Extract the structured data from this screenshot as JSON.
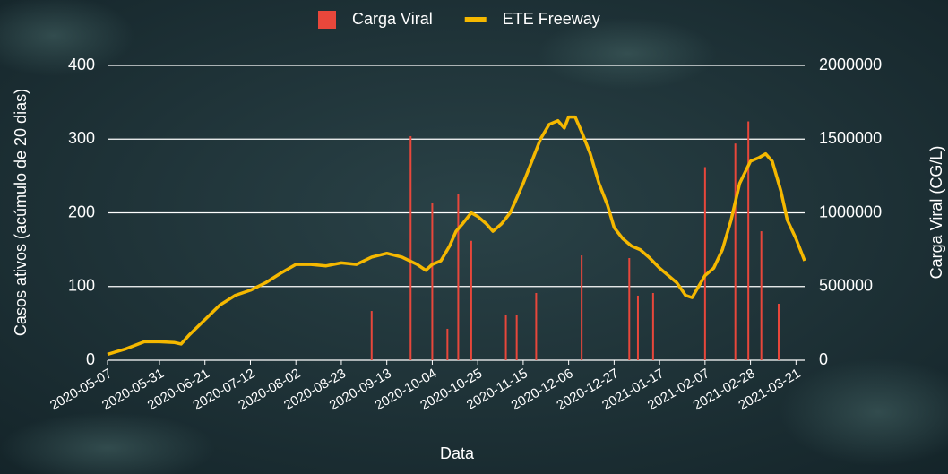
{
  "chart_data": {
    "type": "combo",
    "xlabel": "Data",
    "ylabel": "Casos ativos (acúmulo de 20 dias)",
    "y2label": "Carga Viral (CG/L)",
    "xlim": [
      "2020-05-07",
      "2021-03-25"
    ],
    "xticks": [
      "2020-05-07",
      "2020-05-31",
      "2020-06-21",
      "2020-07-12",
      "2020-08-02",
      "2020-08-23",
      "2020-09-13",
      "2020-10-04",
      "2020-10-25",
      "2020-11-15",
      "2020-12-06",
      "2020-12-27",
      "2021-01-17",
      "2021-02-07",
      "2021-02-28",
      "2021-03-21"
    ],
    "ylim": [
      0,
      400
    ],
    "yticks": [
      0,
      100,
      200,
      300,
      400
    ],
    "y2lim": [
      0,
      2000000
    ],
    "y2ticks": [
      0,
      500000,
      1000000,
      1500000,
      2000000
    ],
    "grid": true,
    "legend": "top",
    "series": [
      {
        "name": "Carga Viral",
        "type": "bar",
        "axis": "y2",
        "color": "#e8473b",
        "x": [
          "2020-09-06",
          "2020-09-24",
          "2020-10-04",
          "2020-10-11",
          "2020-10-16",
          "2020-10-22",
          "2020-11-07",
          "2020-11-12",
          "2020-11-21",
          "2020-12-12",
          "2021-01-03",
          "2021-01-07",
          "2021-01-14",
          "2021-02-07",
          "2021-02-21",
          "2021-02-27",
          "2021-03-05",
          "2021-03-13"
        ],
        "values": [
          334000,
          1520000,
          1070000,
          213000,
          1130000,
          810000,
          304000,
          304000,
          456000,
          711000,
          693000,
          438000,
          456000,
          1310000,
          1470000,
          1620000,
          875000,
          383000
        ]
      },
      {
        "name": "ETE Freeway",
        "type": "line",
        "axis": "y",
        "color": "#f5b800",
        "x": [
          "2020-05-07",
          "2020-05-15",
          "2020-05-24",
          "2020-05-31",
          "2020-06-07",
          "2020-06-10",
          "2020-06-14",
          "2020-06-21",
          "2020-06-28",
          "2020-07-05",
          "2020-07-12",
          "2020-07-19",
          "2020-07-26",
          "2020-08-02",
          "2020-08-09",
          "2020-08-16",
          "2020-08-23",
          "2020-08-30",
          "2020-09-06",
          "2020-09-13",
          "2020-09-20",
          "2020-09-27",
          "2020-10-01",
          "2020-10-04",
          "2020-10-08",
          "2020-10-12",
          "2020-10-15",
          "2020-10-18",
          "2020-10-22",
          "2020-10-25",
          "2020-10-29",
          "2020-11-01",
          "2020-11-05",
          "2020-11-09",
          "2020-11-12",
          "2020-11-15",
          "2020-11-19",
          "2020-11-23",
          "2020-11-27",
          "2020-12-01",
          "2020-12-04",
          "2020-12-06",
          "2020-12-09",
          "2020-12-12",
          "2020-12-16",
          "2020-12-20",
          "2020-12-24",
          "2020-12-27",
          "2020-12-31",
          "2021-01-04",
          "2021-01-08",
          "2021-01-12",
          "2021-01-17",
          "2021-01-21",
          "2021-01-25",
          "2021-01-29",
          "2021-02-01",
          "2021-02-04",
          "2021-02-07",
          "2021-02-11",
          "2021-02-15",
          "2021-02-19",
          "2021-02-23",
          "2021-02-28",
          "2021-03-04",
          "2021-03-07",
          "2021-03-10",
          "2021-03-14",
          "2021-03-17",
          "2021-03-21",
          "2021-03-25"
        ],
        "values": [
          8,
          15,
          25,
          25,
          24,
          22,
          35,
          55,
          75,
          88,
          95,
          105,
          118,
          130,
          130,
          128,
          132,
          130,
          140,
          145,
          140,
          130,
          122,
          130,
          135,
          155,
          175,
          185,
          200,
          195,
          185,
          175,
          185,
          200,
          220,
          240,
          270,
          300,
          320,
          325,
          315,
          330,
          330,
          310,
          280,
          240,
          210,
          180,
          165,
          155,
          150,
          140,
          125,
          115,
          105,
          88,
          85,
          100,
          115,
          125,
          150,
          190,
          240,
          270,
          275,
          280,
          270,
          230,
          190,
          165,
          135
        ]
      }
    ]
  }
}
